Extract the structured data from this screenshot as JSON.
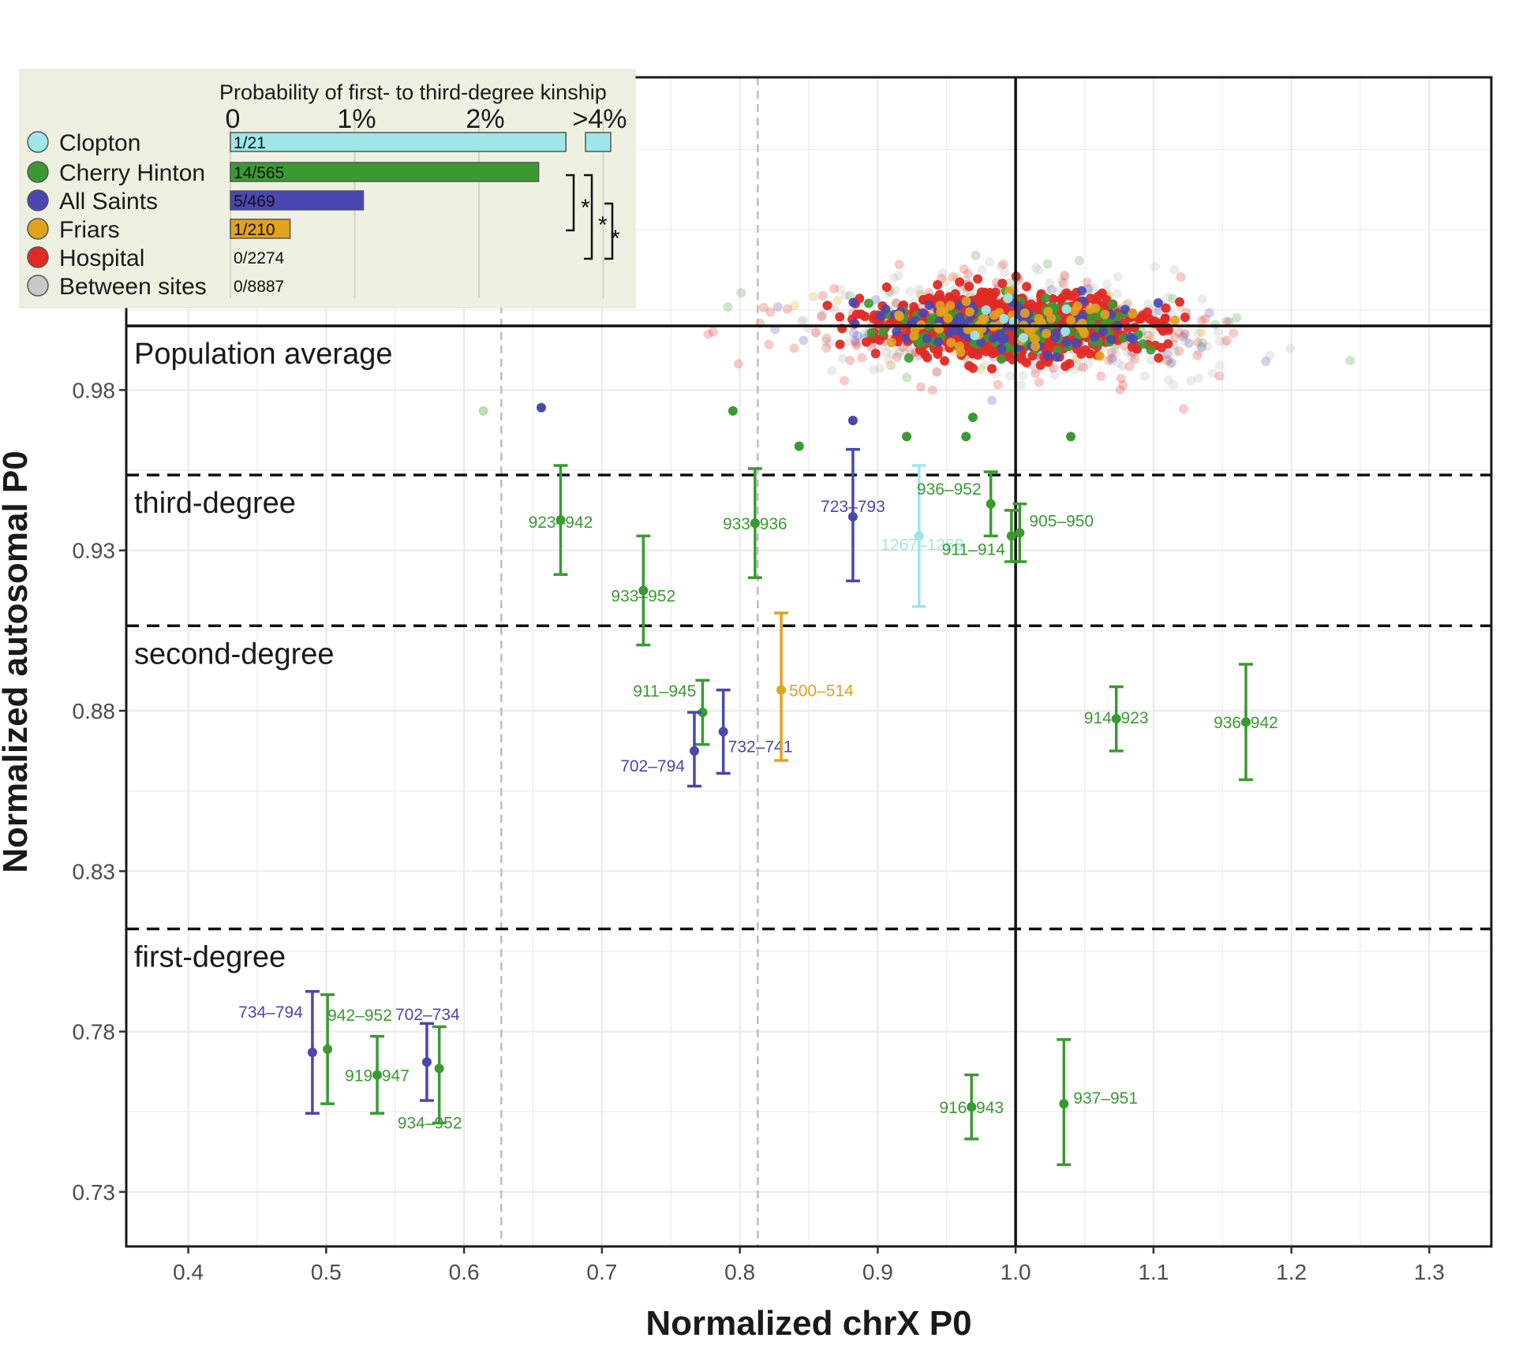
{
  "chart_data": {
    "type": "scatter",
    "xlabel": "Normalized chrX P0",
    "ylabel": "Normalized autosomal P0",
    "xlim": [
      0.355,
      1.345
    ],
    "ylim": [
      0.713,
      1.0775
    ],
    "x_ticks": [
      "0.4",
      "0.5",
      "0.6",
      "0.7",
      "0.8",
      "0.9",
      "1.0",
      "1.1",
      "1.2",
      "1.3"
    ],
    "y_ticks": [
      "0.73",
      "0.78",
      "0.83",
      "0.88",
      "0.93",
      "0.98"
    ],
    "grid": true,
    "reference_lines": {
      "solid_x": 1.0,
      "solid_y": 1.0,
      "dashed_y": [
        0.9535,
        0.9065,
        0.812
      ],
      "dashed_x": [
        0.627,
        0.813
      ]
    },
    "zones": [
      "Population average",
      "third-degree",
      "second-degree",
      "first-degree"
    ],
    "colors": {
      "Clopton": "#9fe6e8",
      "Cherry Hinton": "#3a9a32",
      "All Saints": "#4a47b0",
      "Friars": "#e3a21d",
      "Hospital": "#e22a25",
      "Between sites": "#c8c8c8"
    },
    "pairs": [
      {
        "label": "923–942",
        "site": "Cherry Hinton",
        "x": 0.67,
        "y": 0.9395,
        "low": 0.9225,
        "high": 0.9565
      },
      {
        "label": "933–952",
        "site": "Cherry Hinton",
        "x": 0.73,
        "y": 0.9175,
        "low": 0.9005,
        "high": 0.9345
      },
      {
        "label": "933–936",
        "site": "Cherry Hinton",
        "x": 0.811,
        "y": 0.9385,
        "low": 0.9215,
        "high": 0.9555
      },
      {
        "label": "723–793",
        "site": "All Saints",
        "x": 0.882,
        "y": 0.9405,
        "low": 0.9205,
        "high": 0.9615
      },
      {
        "label": "1267–1268",
        "site": "Clopton",
        "x": 0.93,
        "y": 0.9345,
        "low": 0.9125,
        "high": 0.9565
      },
      {
        "label": "936–952",
        "site": "Cherry Hinton",
        "x": 0.982,
        "y": 0.9445,
        "low": 0.9345,
        "high": 0.9545
      },
      {
        "label": "905–950",
        "site": "Cherry Hinton",
        "x": 1.003,
        "y": 0.9355,
        "low": 0.9265,
        "high": 0.9445
      },
      {
        "label": "911–914",
        "site": "Cherry Hinton",
        "x": 0.997,
        "y": 0.9345,
        "low": 0.9265,
        "high": 0.9425
      },
      {
        "label": "911–945",
        "site": "Cherry Hinton",
        "x": 0.773,
        "y": 0.8795,
        "low": 0.8695,
        "high": 0.8895
      },
      {
        "label": "702–794",
        "site": "All Saints",
        "x": 0.767,
        "y": 0.8675,
        "low": 0.8565,
        "high": 0.8795
      },
      {
        "label": "732–741",
        "site": "All Saints",
        "x": 0.788,
        "y": 0.8735,
        "low": 0.8605,
        "high": 0.8865
      },
      {
        "label": "500–514",
        "site": "Friars",
        "x": 0.83,
        "y": 0.8865,
        "low": 0.8645,
        "high": 0.9105
      },
      {
        "label": "914–923",
        "site": "Cherry Hinton",
        "x": 1.073,
        "y": 0.8775,
        "low": 0.8675,
        "high": 0.8875
      },
      {
        "label": "936–942",
        "site": "Cherry Hinton",
        "x": 1.167,
        "y": 0.8765,
        "low": 0.8585,
        "high": 0.8945
      },
      {
        "label": "734–794",
        "site": "All Saints",
        "x": 0.49,
        "y": 0.7735,
        "low": 0.7545,
        "high": 0.7925
      },
      {
        "label": "942–952",
        "site": "Cherry Hinton",
        "x": 0.501,
        "y": 0.7745,
        "low": 0.7575,
        "high": 0.7915
      },
      {
        "label": "919–947",
        "site": "Cherry Hinton",
        "x": 0.537,
        "y": 0.7665,
        "low": 0.7545,
        "high": 0.7785
      },
      {
        "label": "702–734",
        "site": "All Saints",
        "x": 0.573,
        "y": 0.7705,
        "low": 0.7585,
        "high": 0.7825
      },
      {
        "label": "934–952",
        "site": "Cherry Hinton",
        "x": 0.582,
        "y": 0.7685,
        "low": 0.7515,
        "high": 0.7815
      },
      {
        "label": "916–943",
        "site": "Cherry Hinton",
        "x": 0.968,
        "y": 0.7565,
        "low": 0.7465,
        "high": 0.7665
      },
      {
        "label": "937–951",
        "site": "Cherry Hinton",
        "x": 1.035,
        "y": 0.7575,
        "low": 0.7385,
        "high": 0.7775
      }
    ],
    "outliers": [
      {
        "site": "All Saints",
        "x": 0.656,
        "y": 0.9745
      },
      {
        "site": "Cherry Hinton",
        "x": 0.795,
        "y": 0.9735
      },
      {
        "site": "All Saints",
        "x": 0.882,
        "y": 0.9705
      },
      {
        "site": "Cherry Hinton",
        "x": 0.921,
        "y": 0.9655
      },
      {
        "site": "Cherry Hinton",
        "x": 0.964,
        "y": 0.9655
      },
      {
        "site": "Cherry Hinton",
        "x": 1.04,
        "y": 0.9655
      },
      {
        "site": "Cherry Hinton",
        "x": 0.843,
        "y": 0.9625
      },
      {
        "site": "Cherry Hinton",
        "x": 0.969,
        "y": 0.9715
      },
      {
        "site": "Cherry Hinton",
        "x": 0.614,
        "y": 0.9735
      }
    ],
    "population_cluster": {
      "center_x": 1.0,
      "center_y": 1.0,
      "spread_x": 0.085,
      "spread_y": 0.0085
    },
    "legend": {
      "title": "Probability of first- to third-degree kinship",
      "scale_labels": [
        "0",
        "1%",
        "2%",
        ">4%"
      ],
      "entries": [
        {
          "site": "Clopton",
          "ratio": "1/21",
          "value_pct": 4.76
        },
        {
          "site": "Cherry Hinton",
          "ratio": "14/565",
          "value_pct": 2.48
        },
        {
          "site": "All Saints",
          "ratio": "5/469",
          "value_pct": 1.07
        },
        {
          "site": "Friars",
          "ratio": "1/210",
          "value_pct": 0.48
        },
        {
          "site": "Hospital",
          "ratio": "0/2274",
          "value_pct": 0
        },
        {
          "site": "Between sites",
          "ratio": "0/8887",
          "value_pct": 0
        }
      ],
      "significance_marks": [
        "*",
        "*",
        "*"
      ]
    }
  }
}
